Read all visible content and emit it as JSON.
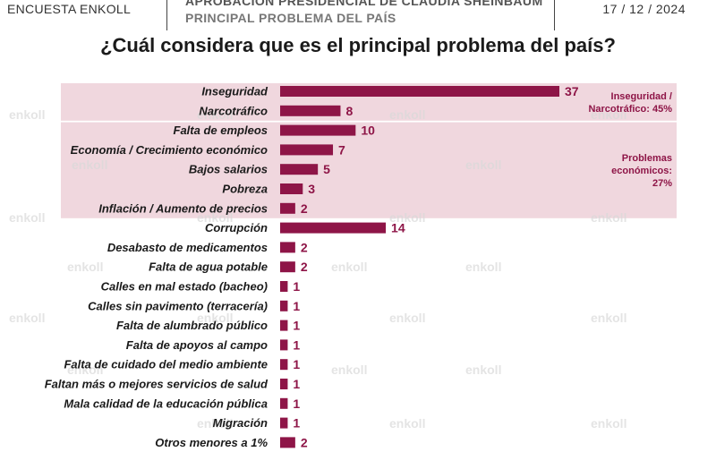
{
  "header": {
    "left": "ENCUESTA ENKOLL",
    "center_line1": "APROBACIÓN PRESIDENCIAL DE CLAUDIA SHEINBAUM",
    "center_line2": "PRINCIPAL PROBLEMA DEL PAÍS",
    "date": "17 / 12 / 2024"
  },
  "watermark": "enkoll",
  "colors": {
    "bar": "#8e1547",
    "band": "#f0d7de",
    "label": "#1a1a1a",
    "value": "#8e1547",
    "group_label": "#8e1547"
  },
  "chart_data": {
    "type": "bar",
    "orientation": "horizontal",
    "title": "¿Cuál considera que es el principal problema del país?",
    "categories": [
      "Inseguridad",
      "Narcotráfico",
      "Falta de empleos",
      "Economía / Crecimiento económico",
      "Bajos salarios",
      "Pobreza",
      "Inflación / Aumento de precios",
      "Corrupción",
      "Desabasto de medicamentos",
      "Falta de agua potable",
      "Calles en mal estado (bacheo)",
      "Calles sin pavimento (terracería)",
      "Falta de alumbrado público",
      "Falta de apoyos al campo",
      "Falta de cuidado del medio ambiente",
      "Faltan más o mejores servicios de salud",
      "Mala calidad de la educación pública",
      "Migración",
      "Otros menores a 1%"
    ],
    "values": [
      37,
      8,
      10,
      7,
      5,
      3,
      2,
      14,
      2,
      2,
      1,
      1,
      1,
      1,
      1,
      1,
      1,
      1,
      2
    ],
    "xlim": [
      0,
      37
    ],
    "groups": [
      {
        "label_lines": [
          "Inseguridad /",
          "Narcotráfico: 45%"
        ],
        "start": 0,
        "end": 1
      },
      {
        "label_lines": [
          "Problemas",
          "económicos:",
          "27%"
        ],
        "start": 2,
        "end": 6
      }
    ]
  }
}
